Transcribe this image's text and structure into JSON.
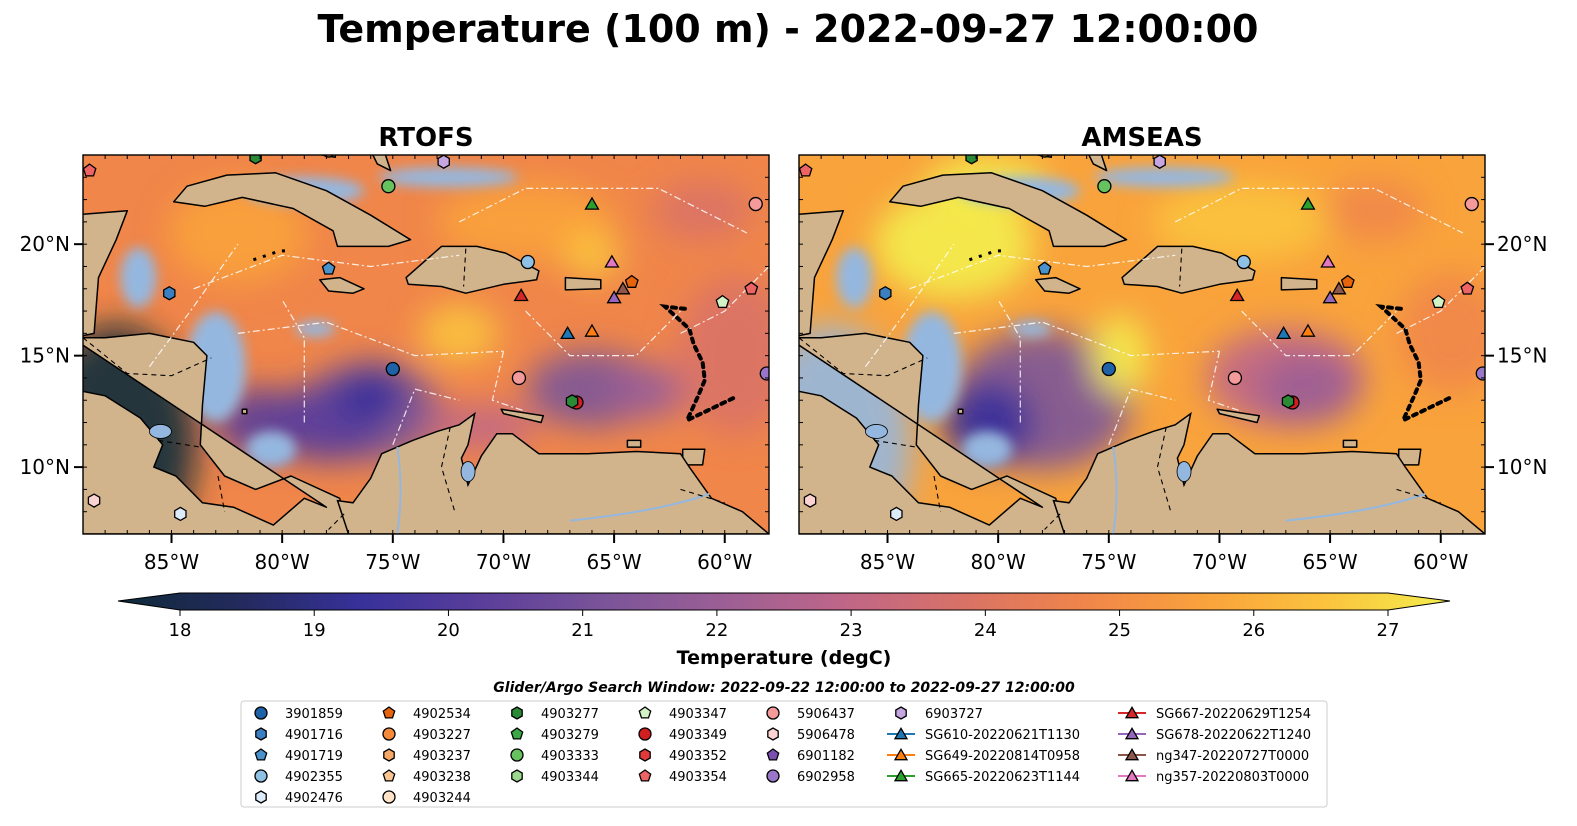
{
  "title": "Temperature (100 m) - 2022-09-27 12:00:00",
  "panels": [
    {
      "title": "RTOFS",
      "model": "rtofs"
    },
    {
      "title": "AMSEAS",
      "model": "amseas"
    }
  ],
  "map": {
    "lon_range": [
      -89,
      -58
    ],
    "lat_range": [
      7,
      24
    ],
    "lon_ticks": [
      "85°W",
      "80°W",
      "75°W",
      "70°W",
      "65°W",
      "60°W"
    ],
    "lon_tick_values": [
      -85,
      -80,
      -75,
      -70,
      -65,
      -60
    ],
    "lat_ticks": [
      "20°N",
      "15°N",
      "10°N"
    ],
    "lat_tick_values": [
      20,
      15,
      10
    ],
    "colors": {
      "land": "#d2b48c",
      "ocean": "#94b7e0",
      "coast": "#000000"
    }
  },
  "colorbar": {
    "label": "Temperature (degC)",
    "vmin": 18,
    "vmax": 27,
    "ticks": [
      "18",
      "19",
      "20",
      "21",
      "22",
      "23",
      "24",
      "25",
      "26",
      "27"
    ],
    "colors": [
      "#0f2b3a",
      "#232a5c",
      "#37319a",
      "#5a3e9a",
      "#7a5499",
      "#9c5f95",
      "#bf6688",
      "#d97266",
      "#f0864a",
      "#f9a33c",
      "#fbc43e",
      "#f3ee4e"
    ]
  },
  "search_window": "Glider/Argo Search Window: 2022-09-22 12:00:00 to 2022-09-27 12:00:00",
  "legend": [
    [
      {
        "label": "3901859",
        "marker": "circle",
        "color": "#1f62a8"
      },
      {
        "label": "4901716",
        "marker": "hexagon",
        "color": "#3a80c0"
      },
      {
        "label": "4901719",
        "marker": "pentagon",
        "color": "#4a92cc"
      },
      {
        "label": "4902355",
        "marker": "circle",
        "color": "#8fc0e6"
      },
      {
        "label": "4902476",
        "marker": "hexagon",
        "color": "#dcebf7"
      }
    ],
    [
      {
        "label": "4902534",
        "marker": "pentagon",
        "color": "#e6640c"
      },
      {
        "label": "4903227",
        "marker": "circle",
        "color": "#f58b3a"
      },
      {
        "label": "4903237",
        "marker": "hexagon",
        "color": "#f7a766"
      },
      {
        "label": "4903238",
        "marker": "pentagon",
        "color": "#fbc591"
      },
      {
        "label": "4903244",
        "marker": "circle",
        "color": "#fde3c8"
      }
    ],
    [
      {
        "label": "4903277",
        "marker": "hexagon",
        "color": "#2a8a35"
      },
      {
        "label": "4903279",
        "marker": "pentagon",
        "color": "#3aa845"
      },
      {
        "label": "4903333",
        "marker": "circle",
        "color": "#66c25e"
      },
      {
        "label": "4903344",
        "marker": "hexagon",
        "color": "#9ad98f"
      }
    ],
    [
      {
        "label": "4903347",
        "marker": "pentagon",
        "color": "#d3f2c6"
      },
      {
        "label": "4903349",
        "marker": "circle",
        "color": "#d11f1f"
      },
      {
        "label": "4903352",
        "marker": "hexagon",
        "color": "#e03a3a"
      },
      {
        "label": "4903354",
        "marker": "pentagon",
        "color": "#ee6464"
      }
    ],
    [
      {
        "label": "5906437",
        "marker": "circle",
        "color": "#f59a9a"
      },
      {
        "label": "5906478",
        "marker": "hexagon",
        "color": "#fcd3d3"
      },
      {
        "label": "6901182",
        "marker": "pentagon",
        "color": "#7a4fb0"
      },
      {
        "label": "6902958",
        "marker": "circle",
        "color": "#9a76c8"
      }
    ],
    [
      {
        "label": "6903727",
        "marker": "hexagon",
        "color": "#c5a6e0"
      },
      {
        "label": "SG610-20220621T1130",
        "marker": "triangle",
        "color": "#1f77b4"
      },
      {
        "label": "SG649-20220814T0958",
        "marker": "triangle",
        "color": "#ff7f0e"
      },
      {
        "label": "SG665-20220623T1144",
        "marker": "triangle",
        "color": "#2ca02c"
      }
    ],
    [
      {
        "label": "SG667-20220629T1254",
        "marker": "triangle",
        "color": "#d62728"
      },
      {
        "label": "SG678-20220622T1240",
        "marker": "triangle",
        "color": "#9467bd"
      },
      {
        "label": "ng347-20220727T0000",
        "marker": "triangle",
        "color": "#8c564b"
      },
      {
        "label": "ng357-20220803T0000",
        "marker": "triangle",
        "color": "#e377c2"
      }
    ]
  ],
  "platforms": [
    {
      "lon": -75,
      "lat": 14.4,
      "marker": "circle",
      "color": "#1f62a8"
    },
    {
      "lon": -85.1,
      "lat": 17.8,
      "marker": "hexagon",
      "color": "#3a80c0"
    },
    {
      "lon": -77.9,
      "lat": 18.9,
      "marker": "pentagon",
      "color": "#4a92cc"
    },
    {
      "lon": -68.9,
      "lat": 19.2,
      "marker": "circle",
      "color": "#8fc0e6"
    },
    {
      "lon": -84.6,
      "lat": 7.9,
      "marker": "hexagon",
      "color": "#dcebf7"
    },
    {
      "lon": -64.2,
      "lat": 18.3,
      "marker": "pentagon",
      "color": "#e6640c"
    },
    {
      "lon": -77.9,
      "lat": 24.2,
      "marker": "circle",
      "color": "#f58b3a"
    },
    {
      "lon": -81.2,
      "lat": 23.9,
      "marker": "hexagon",
      "color": "#2a8a35"
    },
    {
      "lon": -75.2,
      "lat": 22.6,
      "marker": "circle",
      "color": "#66c25e"
    },
    {
      "lon": -60.1,
      "lat": 17.4,
      "marker": "pentagon",
      "color": "#d3f2c6"
    },
    {
      "lon": -66.7,
      "lat": 12.9,
      "marker": "circle",
      "color": "#d11f1f"
    },
    {
      "lon": -66.9,
      "lat": 12.95,
      "marker": "hexagon",
      "color": "#2a8a35"
    },
    {
      "lon": -58.8,
      "lat": 18.0,
      "marker": "pentagon",
      "color": "#ee6464"
    },
    {
      "lon": -88.7,
      "lat": 23.3,
      "marker": "pentagon",
      "color": "#ee6464"
    },
    {
      "lon": -69.3,
      "lat": 14.0,
      "marker": "circle",
      "color": "#f59a9a"
    },
    {
      "lon": -58.6,
      "lat": 21.8,
      "marker": "circle",
      "color": "#f59a9a"
    },
    {
      "lon": -88.5,
      "lat": 8.5,
      "marker": "hexagon",
      "color": "#fcd3d3"
    },
    {
      "lon": -72.7,
      "lat": 23.7,
      "marker": "hexagon",
      "color": "#c5a6e0"
    },
    {
      "lon": -58.1,
      "lat": 14.2,
      "marker": "circle",
      "color": "#9a76c8"
    },
    {
      "lon": -67.1,
      "lat": 16.0,
      "marker": "triangle",
      "color": "#1f77b4"
    },
    {
      "lon": -66.0,
      "lat": 16.1,
      "marker": "triangle",
      "color": "#ff7f0e"
    },
    {
      "lon": -66.0,
      "lat": 21.8,
      "marker": "triangle",
      "color": "#2ca02c"
    },
    {
      "lon": -69.2,
      "lat": 17.7,
      "marker": "triangle",
      "color": "#d62728"
    },
    {
      "lon": -65.0,
      "lat": 17.6,
      "marker": "triangle",
      "color": "#9467bd"
    },
    {
      "lon": -64.6,
      "lat": 18.0,
      "marker": "triangle",
      "color": "#8c564b"
    },
    {
      "lon": -65.1,
      "lat": 19.2,
      "marker": "triangle",
      "color": "#e377c2"
    }
  ]
}
